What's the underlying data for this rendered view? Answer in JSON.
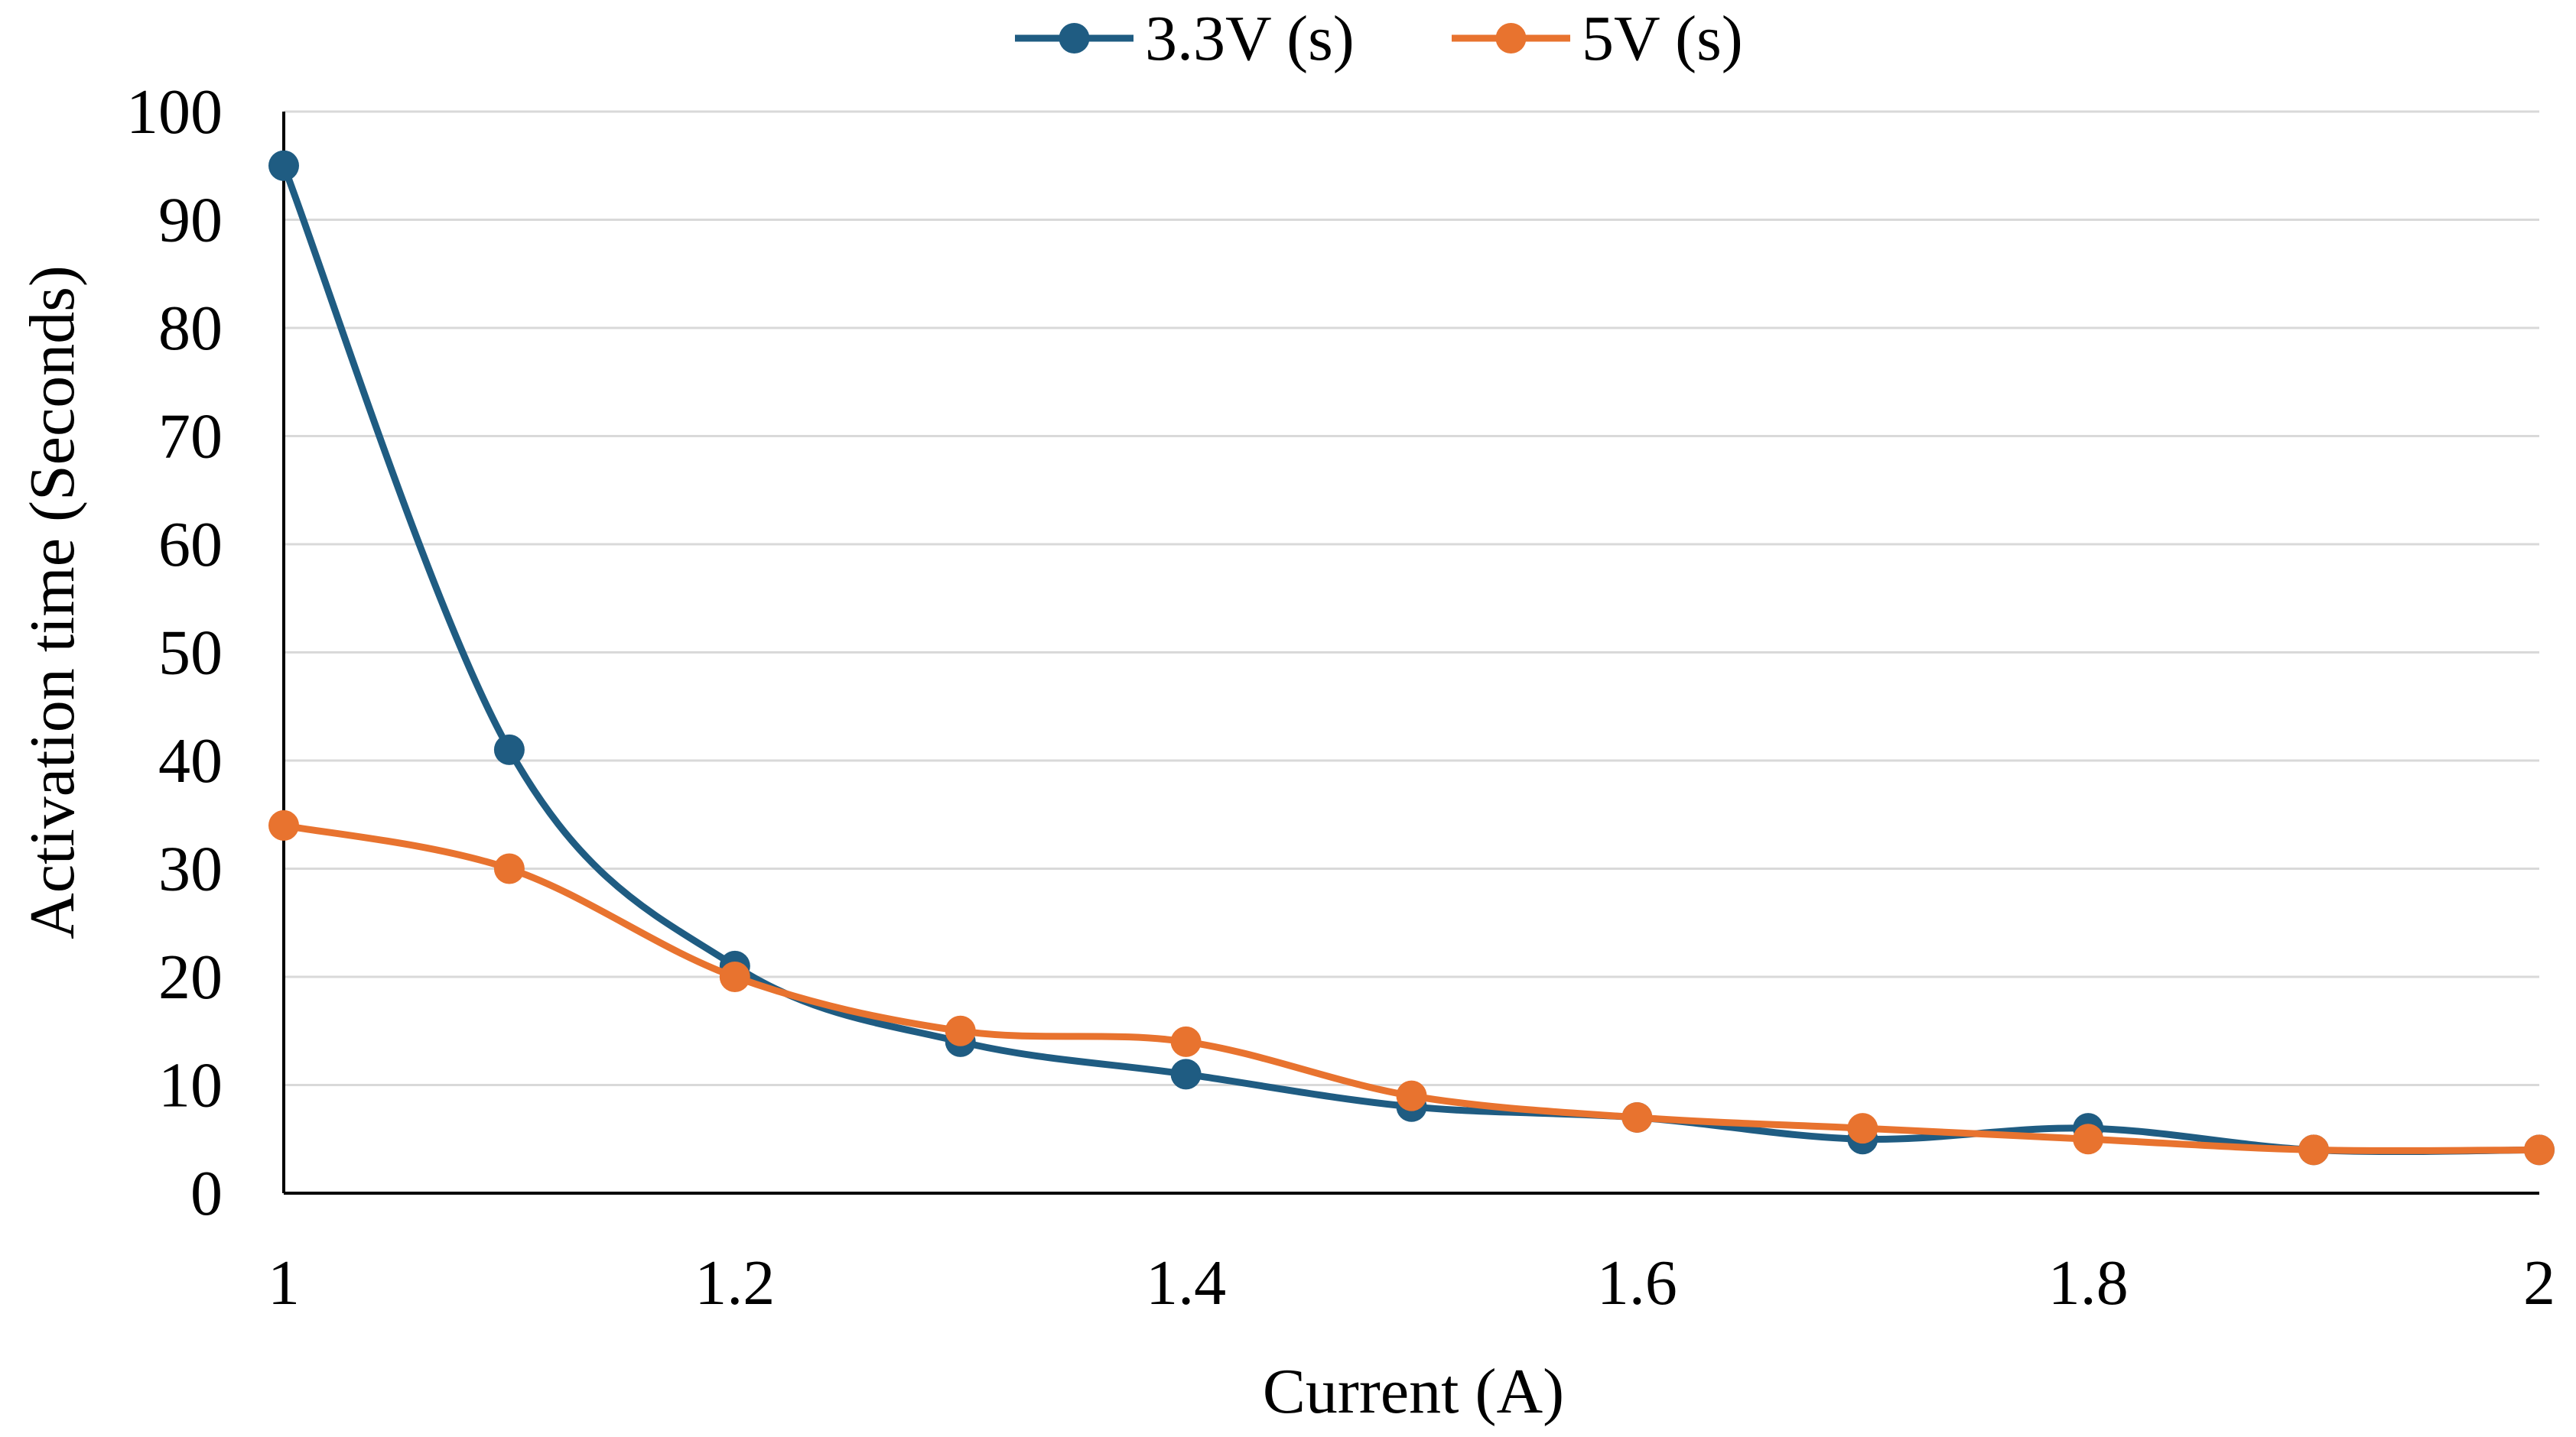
{
  "chart_data": {
    "type": "line",
    "title": "",
    "xlabel": "Current (A)",
    "ylabel": "Activation time (Seconds)",
    "xlim": [
      1,
      2
    ],
    "ylim": [
      0,
      100
    ],
    "x_ticks": [
      1,
      1.2,
      1.4,
      1.6,
      1.8,
      2
    ],
    "x_tick_labels": [
      "1",
      "1.2",
      "1.4",
      "1.6",
      "1.8",
      "2"
    ],
    "y_ticks": [
      0,
      10,
      20,
      30,
      40,
      50,
      60,
      70,
      80,
      90,
      100
    ],
    "y_tick_labels": [
      "0",
      "10",
      "20",
      "30",
      "40",
      "50",
      "60",
      "70",
      "80",
      "90",
      "100"
    ],
    "grid": "horizontal",
    "legend_position": "top-center",
    "x": [
      1.0,
      1.1,
      1.2,
      1.3,
      1.4,
      1.5,
      1.6,
      1.7,
      1.8,
      1.9,
      2.0
    ],
    "series": [
      {
        "name": "3.3V (s)",
        "color": "#1f5c82",
        "values": [
          95,
          41,
          21,
          14,
          11,
          8,
          7,
          5,
          6,
          4,
          4
        ]
      },
      {
        "name": "5V (s)",
        "color": "#e8732f",
        "values": [
          34,
          30,
          20,
          15,
          14,
          9,
          7,
          6,
          5,
          4,
          4
        ]
      }
    ],
    "gridline_color": "#d9d9d9",
    "axis_color": "#000000"
  }
}
